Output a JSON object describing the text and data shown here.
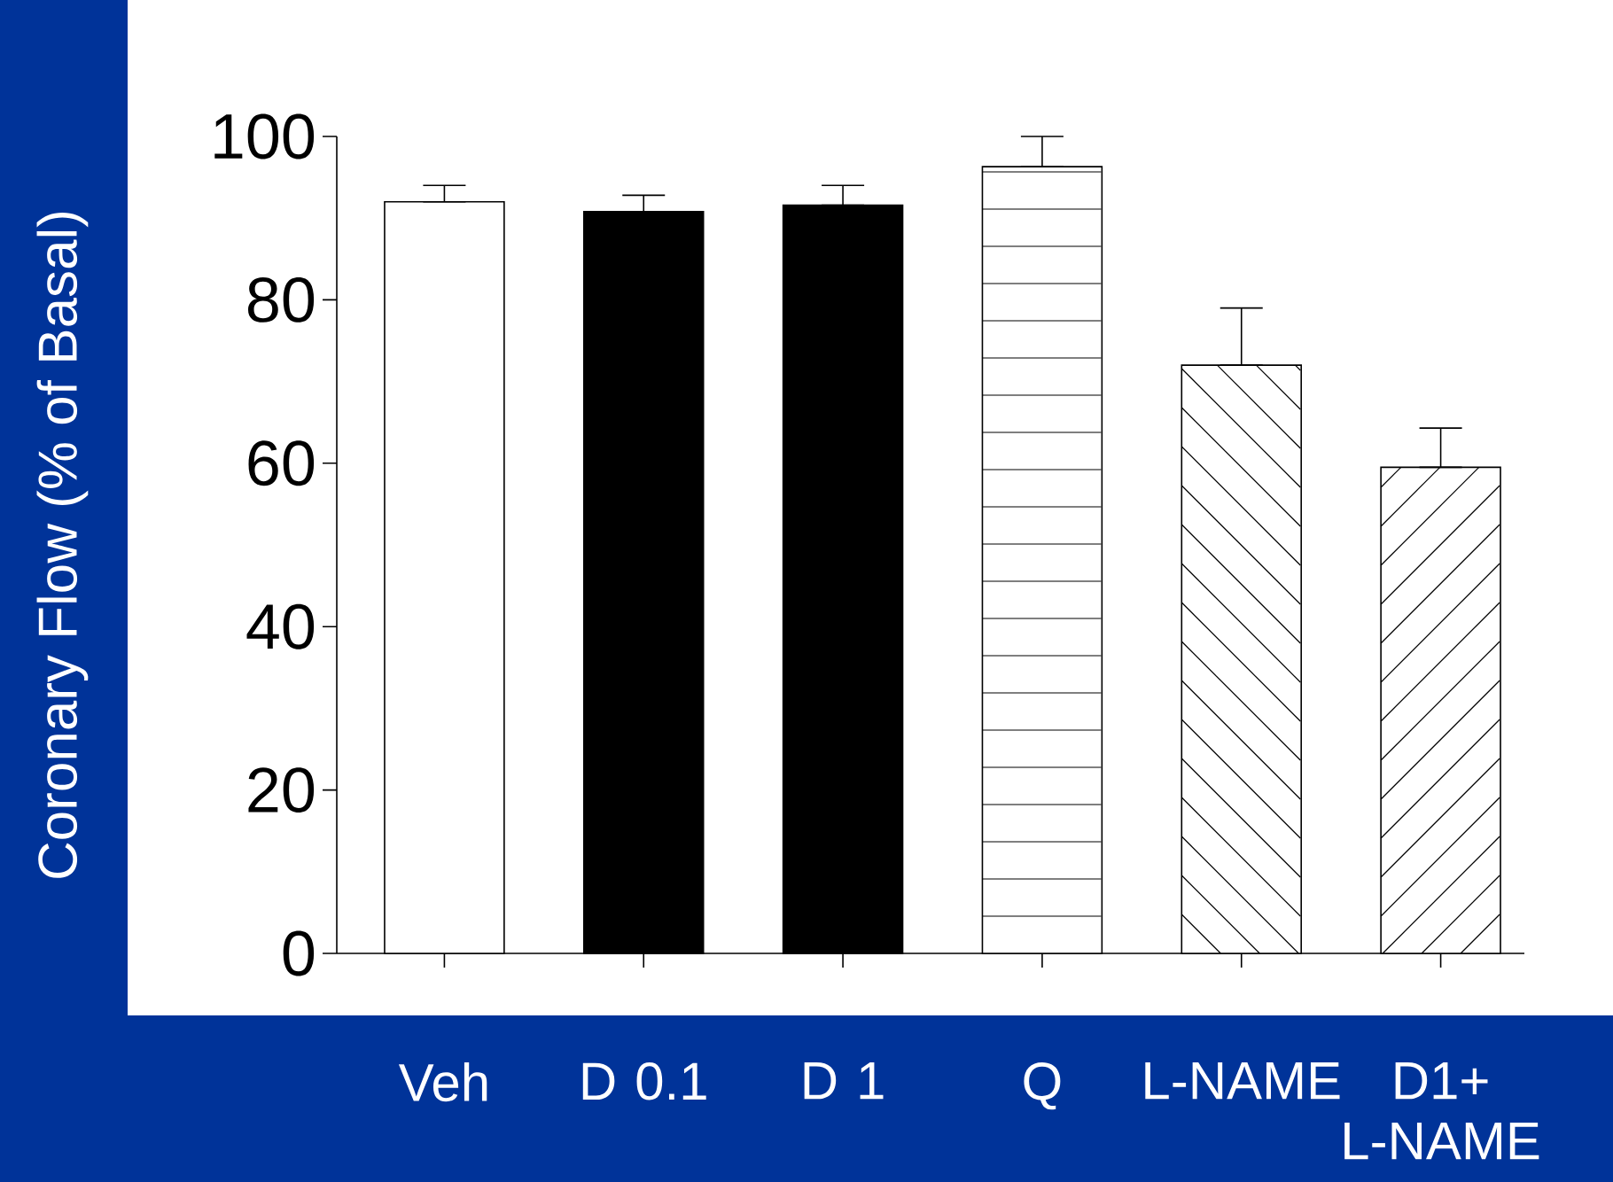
{
  "chart_data": {
    "type": "bar",
    "ylabel": "Coronary Flow (% of Basal)",
    "categories": [
      "Veh",
      "D 0.1",
      "D 1",
      "Q",
      "L-NAME",
      "D1+ L-NAME"
    ],
    "values": [
      92,
      90.8,
      91.6,
      96.3,
      72,
      59.5
    ],
    "errors": [
      [
        92,
        94
      ],
      [
        90.8,
        92.8
      ],
      [
        91.6,
        94
      ],
      [
        96.3,
        100
      ],
      [
        72,
        79
      ],
      [
        59.5,
        64.3
      ]
    ],
    "colors": [
      "#ffffff",
      "#000000",
      "#000000",
      "#ffffff",
      "#ffffff",
      "#ffffff"
    ],
    "ylim": [
      0,
      100
    ],
    "yticks": [
      0,
      20,
      40,
      60,
      80,
      100
    ]
  }
}
